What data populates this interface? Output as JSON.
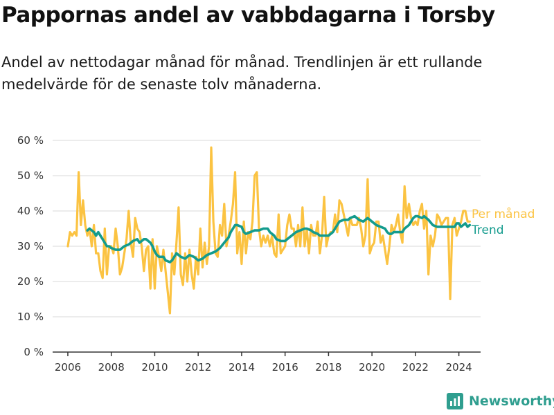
{
  "header": {
    "title": "Pappornas andel av vabbdagarna i Torsby",
    "subtitle": "Andel av nettodagar månad för månad. Trendlinjen är ett rullande medelvärde för de senaste tolv månaderna."
  },
  "brand": {
    "name": "Newsworthy",
    "color": "#2f9e8f"
  },
  "chart_data": {
    "type": "line",
    "ylim": [
      0,
      60
    ],
    "yticks": [
      0,
      10,
      20,
      30,
      40,
      50,
      60
    ],
    "ytick_labels": [
      "0 %",
      "10 %",
      "20 %",
      "30 %",
      "40 %",
      "50 %",
      "60 %"
    ],
    "xlim": [
      2005.3,
      2025.0
    ],
    "xticks": [
      2006,
      2008,
      2010,
      2012,
      2014,
      2016,
      2018,
      2020,
      2022,
      2024
    ],
    "xtick_labels": [
      "2006",
      "2008",
      "2010",
      "2012",
      "2014",
      "2016",
      "2018",
      "2020",
      "2022",
      "2024"
    ],
    "grid": true,
    "legend": "right",
    "series": [
      {
        "name": "Per månad",
        "color": "#fbc342",
        "points": [
          [
            2006.0,
            30
          ],
          [
            2006.1,
            34
          ],
          [
            2006.2,
            33
          ],
          [
            2006.3,
            34
          ],
          [
            2006.4,
            33
          ],
          [
            2006.5,
            51
          ],
          [
            2006.6,
            36
          ],
          [
            2006.7,
            43
          ],
          [
            2006.8,
            36
          ],
          [
            2006.9,
            33
          ],
          [
            2007.0,
            35
          ],
          [
            2007.1,
            30
          ],
          [
            2007.2,
            36
          ],
          [
            2007.3,
            28
          ],
          [
            2007.4,
            28
          ],
          [
            2007.5,
            23
          ],
          [
            2007.6,
            21
          ],
          [
            2007.7,
            35
          ],
          [
            2007.8,
            22
          ],
          [
            2007.9,
            30
          ],
          [
            2008.0,
            30
          ],
          [
            2008.1,
            28
          ],
          [
            2008.2,
            35
          ],
          [
            2008.3,
            30
          ],
          [
            2008.4,
            22
          ],
          [
            2008.5,
            24
          ],
          [
            2008.6,
            28
          ],
          [
            2008.7,
            32
          ],
          [
            2008.8,
            40
          ],
          [
            2008.9,
            31
          ],
          [
            2009.0,
            27
          ],
          [
            2009.1,
            38
          ],
          [
            2009.2,
            35
          ],
          [
            2009.3,
            34
          ],
          [
            2009.4,
            30
          ],
          [
            2009.5,
            23
          ],
          [
            2009.6,
            29
          ],
          [
            2009.7,
            30
          ],
          [
            2009.8,
            18
          ],
          [
            2009.9,
            32
          ],
          [
            2010.0,
            18
          ],
          [
            2010.1,
            30
          ],
          [
            2010.2,
            27
          ],
          [
            2010.3,
            23
          ],
          [
            2010.4,
            29
          ],
          [
            2010.5,
            23
          ],
          [
            2010.6,
            17
          ],
          [
            2010.7,
            11
          ],
          [
            2010.8,
            28
          ],
          [
            2010.9,
            22
          ],
          [
            2011.0,
            31
          ],
          [
            2011.1,
            41
          ],
          [
            2011.2,
            22
          ],
          [
            2011.3,
            19
          ],
          [
            2011.4,
            28
          ],
          [
            2011.5,
            20
          ],
          [
            2011.6,
            29
          ],
          [
            2011.7,
            22
          ],
          [
            2011.8,
            18
          ],
          [
            2011.9,
            27
          ],
          [
            2012.0,
            22
          ],
          [
            2012.1,
            35
          ],
          [
            2012.2,
            24
          ],
          [
            2012.3,
            31
          ],
          [
            2012.4,
            25
          ],
          [
            2012.5,
            30
          ],
          [
            2012.6,
            58
          ],
          [
            2012.7,
            37
          ],
          [
            2012.8,
            28
          ],
          [
            2012.9,
            27
          ],
          [
            2013.0,
            36
          ],
          [
            2013.1,
            33
          ],
          [
            2013.2,
            42
          ],
          [
            2013.3,
            30
          ],
          [
            2013.4,
            33
          ],
          [
            2013.5,
            37
          ],
          [
            2013.6,
            42
          ],
          [
            2013.7,
            51
          ],
          [
            2013.8,
            28
          ],
          [
            2013.9,
            34
          ],
          [
            2014.0,
            25
          ],
          [
            2014.1,
            37
          ],
          [
            2014.2,
            28
          ],
          [
            2014.3,
            34
          ],
          [
            2014.4,
            32
          ],
          [
            2014.5,
            37
          ],
          [
            2014.6,
            50
          ],
          [
            2014.7,
            51
          ],
          [
            2014.8,
            35
          ],
          [
            2014.9,
            30
          ],
          [
            2015.0,
            33
          ],
          [
            2015.1,
            31
          ],
          [
            2015.2,
            33
          ],
          [
            2015.3,
            30
          ],
          [
            2015.4,
            33
          ],
          [
            2015.5,
            28
          ],
          [
            2015.6,
            27
          ],
          [
            2015.7,
            39
          ],
          [
            2015.8,
            28
          ],
          [
            2015.9,
            29
          ],
          [
            2016.0,
            30
          ],
          [
            2016.1,
            36
          ],
          [
            2016.2,
            39
          ],
          [
            2016.3,
            35
          ],
          [
            2016.4,
            35
          ],
          [
            2016.5,
            30
          ],
          [
            2016.6,
            36
          ],
          [
            2016.7,
            30
          ],
          [
            2016.8,
            41
          ],
          [
            2016.9,
            30
          ],
          [
            2017.0,
            35
          ],
          [
            2017.1,
            28
          ],
          [
            2017.2,
            36
          ],
          [
            2017.3,
            33
          ],
          [
            2017.4,
            33
          ],
          [
            2017.5,
            37
          ],
          [
            2017.6,
            28
          ],
          [
            2017.7,
            33
          ],
          [
            2017.8,
            44
          ],
          [
            2017.9,
            30
          ],
          [
            2018.0,
            33
          ],
          [
            2018.1,
            34
          ],
          [
            2018.2,
            34
          ],
          [
            2018.3,
            39
          ],
          [
            2018.4,
            34
          ],
          [
            2018.5,
            43
          ],
          [
            2018.6,
            42
          ],
          [
            2018.7,
            39
          ],
          [
            2018.8,
            36
          ],
          [
            2018.9,
            33
          ],
          [
            2019.0,
            38
          ],
          [
            2019.1,
            36
          ],
          [
            2019.2,
            36
          ],
          [
            2019.3,
            36
          ],
          [
            2019.4,
            38
          ],
          [
            2019.5,
            35
          ],
          [
            2019.6,
            30
          ],
          [
            2019.7,
            33
          ],
          [
            2019.8,
            49
          ],
          [
            2019.9,
            28
          ],
          [
            2020.0,
            30
          ],
          [
            2020.1,
            31
          ],
          [
            2020.2,
            37
          ],
          [
            2020.3,
            37
          ],
          [
            2020.4,
            31
          ],
          [
            2020.5,
            33
          ],
          [
            2020.6,
            29
          ],
          [
            2020.7,
            25
          ],
          [
            2020.8,
            30
          ],
          [
            2020.9,
            36
          ],
          [
            2021.0,
            34
          ],
          [
            2021.1,
            36
          ],
          [
            2021.2,
            39
          ],
          [
            2021.3,
            34
          ],
          [
            2021.4,
            31
          ],
          [
            2021.5,
            47
          ],
          [
            2021.6,
            38
          ],
          [
            2021.7,
            42
          ],
          [
            2021.8,
            38
          ],
          [
            2021.9,
            36
          ],
          [
            2022.0,
            37
          ],
          [
            2022.1,
            36
          ],
          [
            2022.2,
            40
          ],
          [
            2022.3,
            42
          ],
          [
            2022.4,
            35
          ],
          [
            2022.5,
            40
          ],
          [
            2022.6,
            22
          ],
          [
            2022.7,
            33
          ],
          [
            2022.8,
            30
          ],
          [
            2022.9,
            33
          ],
          [
            2023.0,
            39
          ],
          [
            2023.1,
            38
          ],
          [
            2023.2,
            36
          ],
          [
            2023.3,
            37
          ],
          [
            2023.4,
            38
          ],
          [
            2023.5,
            38
          ],
          [
            2023.6,
            15
          ],
          [
            2023.7,
            36
          ],
          [
            2023.8,
            38
          ],
          [
            2023.9,
            33
          ],
          [
            2024.0,
            35
          ],
          [
            2024.1,
            37
          ],
          [
            2024.2,
            40
          ],
          [
            2024.3,
            40
          ],
          [
            2024.4,
            37
          ],
          [
            2024.5,
            37
          ]
        ]
      },
      {
        "name": "Trend",
        "color": "#139b8d",
        "points": [
          [
            2006.9,
            34.5
          ],
          [
            2007.0,
            35
          ],
          [
            2007.1,
            34.5
          ],
          [
            2007.2,
            34
          ],
          [
            2007.3,
            33
          ],
          [
            2007.4,
            34
          ],
          [
            2007.5,
            33
          ],
          [
            2007.6,
            32
          ],
          [
            2007.7,
            31
          ],
          [
            2007.8,
            30
          ],
          [
            2007.9,
            30
          ],
          [
            2008.0,
            29.5
          ],
          [
            2008.2,
            29
          ],
          [
            2008.4,
            29
          ],
          [
            2008.6,
            30
          ],
          [
            2008.8,
            30.5
          ],
          [
            2009.0,
            31.5
          ],
          [
            2009.2,
            32
          ],
          [
            2009.3,
            31
          ],
          [
            2009.5,
            32
          ],
          [
            2009.6,
            32
          ],
          [
            2009.8,
            31
          ],
          [
            2009.9,
            30
          ],
          [
            2010.0,
            28.5
          ],
          [
            2010.1,
            27.5
          ],
          [
            2010.2,
            27
          ],
          [
            2010.4,
            27
          ],
          [
            2010.5,
            26
          ],
          [
            2010.7,
            25.5
          ],
          [
            2010.8,
            26
          ],
          [
            2010.9,
            27
          ],
          [
            2011.0,
            28
          ],
          [
            2011.2,
            27
          ],
          [
            2011.4,
            26.5
          ],
          [
            2011.6,
            27.5
          ],
          [
            2011.8,
            27
          ],
          [
            2012.0,
            26
          ],
          [
            2012.2,
            26.5
          ],
          [
            2012.4,
            27.5
          ],
          [
            2012.6,
            28
          ],
          [
            2012.8,
            28.5
          ],
          [
            2013.0,
            29.5
          ],
          [
            2013.2,
            31
          ],
          [
            2013.4,
            32.5
          ],
          [
            2013.5,
            34
          ],
          [
            2013.6,
            35
          ],
          [
            2013.7,
            36
          ],
          [
            2013.8,
            36
          ],
          [
            2014.0,
            35.5
          ],
          [
            2014.1,
            34
          ],
          [
            2014.2,
            33.5
          ],
          [
            2014.4,
            34
          ],
          [
            2014.6,
            34.5
          ],
          [
            2014.8,
            34.5
          ],
          [
            2015.0,
            35
          ],
          [
            2015.2,
            35
          ],
          [
            2015.3,
            34
          ],
          [
            2015.5,
            33
          ],
          [
            2015.6,
            32
          ],
          [
            2015.8,
            31.5
          ],
          [
            2016.0,
            31.5
          ],
          [
            2016.1,
            32
          ],
          [
            2016.3,
            33
          ],
          [
            2016.5,
            34
          ],
          [
            2016.7,
            34.5
          ],
          [
            2016.9,
            35
          ],
          [
            2017.0,
            35
          ],
          [
            2017.2,
            34.5
          ],
          [
            2017.3,
            34
          ],
          [
            2017.5,
            33.5
          ],
          [
            2017.6,
            33
          ],
          [
            2017.8,
            33
          ],
          [
            2018.0,
            33
          ],
          [
            2018.2,
            34
          ],
          [
            2018.3,
            35
          ],
          [
            2018.5,
            37
          ],
          [
            2018.7,
            37.5
          ],
          [
            2018.9,
            37.5
          ],
          [
            2019.0,
            38
          ],
          [
            2019.2,
            38.5
          ],
          [
            2019.4,
            37.5
          ],
          [
            2019.6,
            37
          ],
          [
            2019.7,
            37.5
          ],
          [
            2019.8,
            38
          ],
          [
            2019.9,
            37.5
          ],
          [
            2020.0,
            37
          ],
          [
            2020.2,
            36
          ],
          [
            2020.4,
            35.5
          ],
          [
            2020.6,
            35
          ],
          [
            2020.7,
            34
          ],
          [
            2020.8,
            33.5
          ],
          [
            2020.9,
            33.5
          ],
          [
            2021.0,
            34
          ],
          [
            2021.2,
            34
          ],
          [
            2021.4,
            34
          ],
          [
            2021.5,
            35
          ],
          [
            2021.7,
            36
          ],
          [
            2021.8,
            37
          ],
          [
            2021.9,
            38
          ],
          [
            2022.0,
            38.5
          ],
          [
            2022.1,
            38.5
          ],
          [
            2022.3,
            38
          ],
          [
            2022.4,
            38.5
          ],
          [
            2022.6,
            37.5
          ],
          [
            2022.8,
            36
          ],
          [
            2023.0,
            35.5
          ],
          [
            2023.2,
            35.5
          ],
          [
            2023.4,
            35.5
          ],
          [
            2023.6,
            35.5
          ],
          [
            2023.8,
            35.5
          ],
          [
            2023.9,
            36.5
          ],
          [
            2024.0,
            36.5
          ],
          [
            2024.1,
            35.5
          ],
          [
            2024.2,
            36
          ],
          [
            2024.3,
            36.5
          ],
          [
            2024.4,
            35.5
          ],
          [
            2024.5,
            36
          ]
        ]
      }
    ]
  }
}
